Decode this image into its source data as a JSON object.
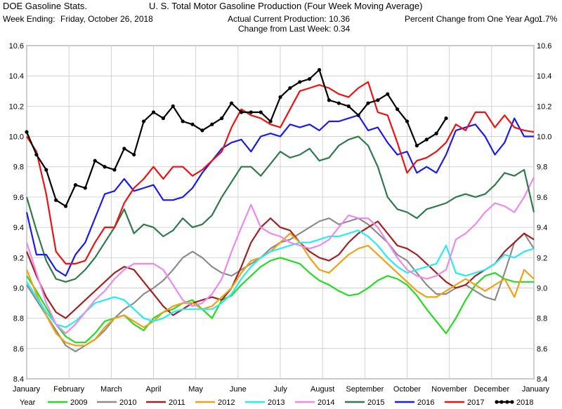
{
  "header": {
    "app_title": "DOE Gasoline Stats.",
    "week_ending_label": "Week Ending:",
    "week_ending_value": "Friday, October 26, 2018",
    "chart_title": "U. S. Total Motor Gasoline Production (Four Week Moving Average)",
    "current_production": "Actual Current Production: 10.36",
    "change_last_week": "Change from Last Week: 0.34",
    "pct_change_label": "Percent Change from One Year Ago:",
    "pct_change_value": "1.7%"
  },
  "chart_data": {
    "type": "line",
    "title": "U. S. Total Motor Gasoline Production (Four Week Moving Average)",
    "xlabel": "",
    "ylabel": "",
    "x_range": [
      0,
      52
    ],
    "ylim": [
      8.4,
      10.6
    ],
    "y_ticks": [
      8.4,
      8.6,
      8.8,
      9.0,
      9.2,
      9.4,
      9.6,
      9.8,
      10.0,
      10.2,
      10.4,
      10.6
    ],
    "y_tick_labels": [
      "8.4",
      "8.6",
      "8.8",
      "9.0",
      "9.2",
      "9.4",
      "9.6",
      "9.8",
      "10.0",
      "10.2",
      "10.4",
      "10.6"
    ],
    "month_labels": [
      "January",
      "February",
      "March",
      "April",
      "May",
      "June",
      "July",
      "August",
      "September",
      "October",
      "November",
      "December",
      "January"
    ],
    "grid": true,
    "legend_title": "Year",
    "legend_position": "bottom",
    "series": [
      {
        "name": "2009",
        "color": "#22dd22",
        "values": [
          9.08,
          8.98,
          8.87,
          8.76,
          8.68,
          8.64,
          8.64,
          8.7,
          8.78,
          8.8,
          8.82,
          8.76,
          8.72,
          8.8,
          8.84,
          8.86,
          8.9,
          8.92,
          8.86,
          8.8,
          8.92,
          8.95,
          9.02,
          9.08,
          9.14,
          9.18,
          9.2,
          9.18,
          9.16,
          9.1,
          9.05,
          9.02,
          8.98,
          8.95,
          8.96,
          9.0,
          9.05,
          9.08,
          9.06,
          9.02,
          8.95,
          8.86,
          8.78,
          8.7,
          8.8,
          8.92,
          9.02,
          9.08,
          9.1,
          9.06,
          9.04,
          9.04,
          9.04
        ]
      },
      {
        "name": "2010",
        "color": "#8c8c8c",
        "values": [
          9.02,
          8.92,
          8.82,
          8.72,
          8.62,
          8.58,
          8.62,
          8.66,
          8.72,
          8.8,
          8.86,
          8.9,
          8.96,
          9.0,
          9.05,
          9.12,
          9.2,
          9.24,
          9.2,
          9.14,
          9.1,
          9.08,
          9.12,
          9.16,
          9.2,
          9.26,
          9.3,
          9.32,
          9.36,
          9.4,
          9.44,
          9.46,
          9.42,
          9.44,
          9.46,
          9.42,
          9.36,
          9.3,
          9.22,
          9.18,
          9.1,
          9.02,
          8.96,
          8.96,
          9.0,
          9.02,
          8.98,
          8.94,
          8.92,
          9.1,
          9.3,
          9.36,
          9.26
        ]
      },
      {
        "name": "2011",
        "color": "#a12222",
        "values": [
          9.24,
          9.08,
          8.94,
          8.84,
          8.8,
          8.86,
          8.92,
          8.98,
          9.04,
          9.1,
          9.14,
          9.12,
          9.04,
          8.96,
          8.88,
          8.82,
          8.86,
          8.9,
          8.92,
          8.94,
          8.92,
          9.0,
          9.14,
          9.3,
          9.4,
          9.46,
          9.4,
          9.38,
          9.3,
          9.24,
          9.2,
          9.18,
          9.22,
          9.3,
          9.36,
          9.4,
          9.44,
          9.36,
          9.28,
          9.26,
          9.22,
          9.16,
          9.1,
          9.04,
          9.0,
          9.02,
          9.08,
          9.12,
          9.16,
          9.24,
          9.3,
          9.36,
          9.32
        ]
      },
      {
        "name": "2012",
        "color": "#f0a010",
        "values": [
          9.12,
          8.96,
          8.82,
          8.7,
          8.64,
          8.62,
          8.62,
          8.66,
          8.74,
          8.8,
          8.82,
          8.78,
          8.74,
          8.78,
          8.84,
          8.88,
          8.9,
          8.9,
          8.86,
          8.88,
          8.94,
          9.0,
          9.1,
          9.18,
          9.2,
          9.24,
          9.3,
          9.36,
          9.3,
          9.2,
          9.12,
          9.1,
          9.16,
          9.22,
          9.26,
          9.28,
          9.22,
          9.16,
          9.1,
          9.04,
          8.98,
          8.94,
          8.94,
          8.98,
          9.02,
          9.06,
          9.02,
          8.98,
          9.02,
          9.06,
          8.94,
          9.12,
          9.06
        ]
      },
      {
        "name": "2013",
        "color": "#22eeee",
        "values": [
          9.04,
          8.94,
          8.84,
          8.76,
          8.74,
          8.78,
          8.84,
          8.9,
          8.92,
          8.94,
          8.92,
          8.86,
          8.8,
          8.78,
          8.8,
          8.84,
          8.86,
          8.86,
          8.86,
          8.86,
          8.9,
          8.96,
          9.06,
          9.14,
          9.2,
          9.24,
          9.26,
          9.28,
          9.3,
          9.3,
          9.32,
          9.34,
          9.34,
          9.36,
          9.38,
          9.34,
          9.28,
          9.2,
          9.14,
          9.1,
          9.12,
          9.14,
          9.16,
          9.28,
          9.1,
          9.08,
          9.1,
          9.12,
          9.16,
          9.22,
          9.2,
          9.24,
          9.26
        ]
      },
      {
        "name": "2014",
        "color": "#ee88ee",
        "values": [
          9.3,
          9.1,
          8.9,
          8.76,
          8.7,
          8.76,
          8.84,
          8.92,
          8.98,
          9.06,
          9.12,
          9.16,
          9.16,
          9.16,
          9.12,
          9.02,
          8.92,
          8.88,
          8.9,
          8.96,
          9.06,
          9.24,
          9.4,
          9.55,
          9.4,
          9.36,
          9.34,
          9.3,
          9.28,
          9.26,
          9.28,
          9.32,
          9.4,
          9.48,
          9.46,
          9.46,
          9.4,
          9.3,
          9.2,
          9.12,
          9.08,
          9.06,
          9.08,
          9.12,
          9.32,
          9.36,
          9.42,
          9.5,
          9.56,
          9.54,
          9.5,
          9.6,
          9.73
        ]
      },
      {
        "name": "2015",
        "color": "#2e7a4a",
        "values": [
          9.6,
          9.38,
          9.18,
          9.06,
          9.04,
          9.06,
          9.12,
          9.2,
          9.3,
          9.4,
          9.52,
          9.36,
          9.42,
          9.4,
          9.34,
          9.38,
          9.46,
          9.4,
          9.42,
          9.48,
          9.6,
          9.7,
          9.8,
          9.8,
          9.74,
          9.82,
          9.9,
          9.86,
          9.88,
          9.92,
          9.84,
          9.86,
          9.94,
          9.98,
          10.0,
          9.94,
          9.8,
          9.6,
          9.52,
          9.5,
          9.46,
          9.52,
          9.54,
          9.56,
          9.6,
          9.62,
          9.6,
          9.62,
          9.68,
          9.76,
          9.74,
          9.78,
          9.5
        ]
      },
      {
        "name": "2016",
        "color": "#1a1aee",
        "values": [
          9.5,
          9.22,
          9.22,
          9.12,
          9.08,
          9.22,
          9.3,
          9.46,
          9.62,
          9.64,
          9.72,
          9.64,
          9.66,
          9.68,
          9.58,
          9.58,
          9.6,
          9.66,
          9.76,
          9.84,
          9.92,
          9.96,
          9.98,
          9.9,
          10.0,
          10.02,
          10.0,
          10.08,
          10.06,
          10.08,
          10.04,
          10.1,
          10.1,
          10.12,
          10.14,
          10.04,
          10.06,
          9.96,
          9.88,
          9.9,
          9.76,
          9.8,
          9.76,
          9.88,
          10.04,
          10.06,
          10.08,
          10.0,
          9.88,
          9.96,
          10.12,
          10.0,
          10.0
        ]
      },
      {
        "name": "2017",
        "color": "#ee1111",
        "values": [
          10.0,
          9.9,
          9.62,
          9.24,
          9.16,
          9.16,
          9.18,
          9.3,
          9.4,
          9.4,
          9.56,
          9.66,
          9.72,
          9.8,
          9.72,
          9.8,
          9.8,
          9.74,
          9.78,
          9.84,
          9.9,
          10.06,
          10.18,
          10.14,
          10.12,
          10.08,
          10.06,
          10.18,
          10.3,
          10.32,
          10.34,
          10.32,
          10.28,
          10.26,
          10.32,
          10.36,
          10.16,
          10.14,
          9.96,
          9.76,
          9.84,
          9.86,
          9.9,
          9.96,
          10.08,
          10.04,
          10.16,
          10.16,
          10.06,
          10.14,
          10.06,
          10.04,
          10.03
        ]
      },
      {
        "name": "2018",
        "color": "#000000",
        "values": [
          10.03,
          9.88,
          9.78,
          9.58,
          9.54,
          9.68,
          9.66,
          9.84,
          9.8,
          9.78,
          9.92,
          9.88,
          10.1,
          10.16,
          10.12,
          10.2,
          10.1,
          10.08,
          10.04,
          10.08,
          10.12,
          10.22,
          10.16,
          10.16,
          10.16,
          10.1,
          10.26,
          10.32,
          10.36,
          10.38,
          10.44,
          10.24,
          10.22,
          10.2,
          10.14,
          10.22,
          10.24,
          10.28,
          10.18,
          10.1,
          9.94,
          9.98,
          10.02,
          10.12
        ]
      }
    ]
  }
}
